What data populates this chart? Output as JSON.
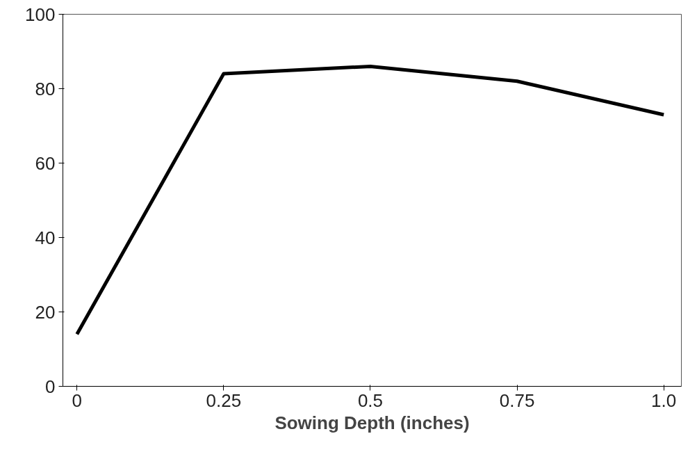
{
  "chart_data": {
    "type": "line",
    "xlabel": "Sowing Depth (inches)",
    "x": [
      0,
      0.25,
      0.5,
      0.75,
      1.0
    ],
    "series": [
      {
        "color": "#000000",
        "values": [
          14,
          84,
          86,
          82,
          73
        ]
      }
    ],
    "xlim": [
      -0.024,
      1.03
    ],
    "ylim": [
      0,
      100
    ],
    "xticks": [
      0,
      0.25,
      0.5,
      0.75,
      {
        "value": 1.0,
        "label": "1.0"
      }
    ],
    "yticks": [
      0,
      20,
      40,
      60,
      80,
      100
    ],
    "grid": false,
    "marker": "none",
    "line_style": "solid"
  }
}
